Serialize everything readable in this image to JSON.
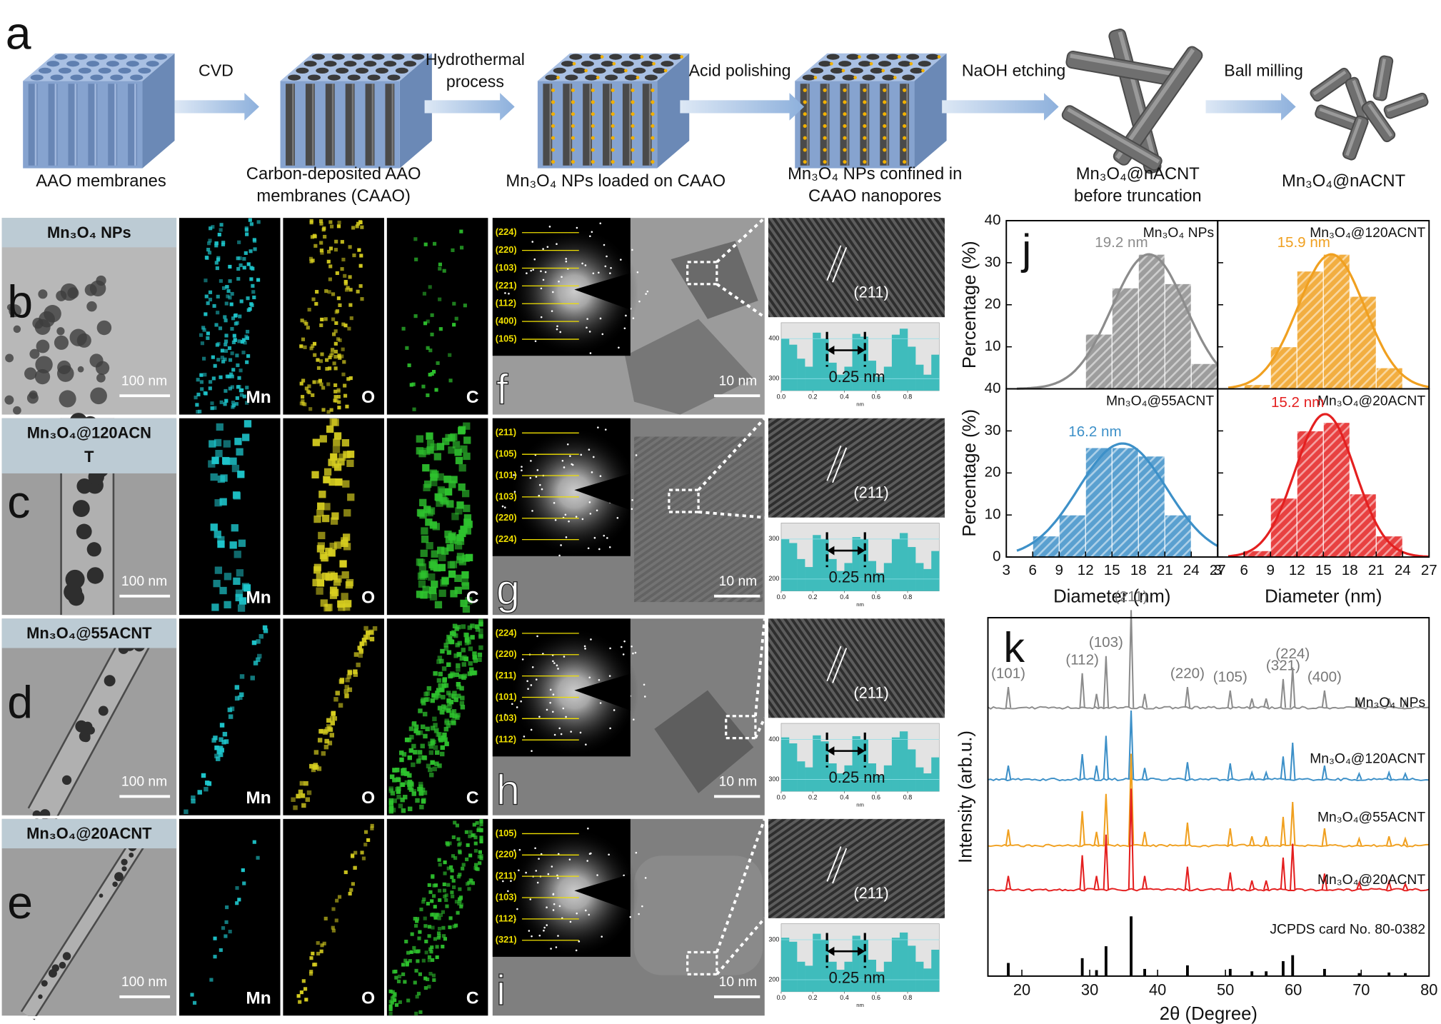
{
  "panel_a": {
    "letter": "a",
    "arrows": [
      [
        "CVD"
      ],
      [
        "Hydrothermal",
        "process"
      ],
      [
        "Acid polishing"
      ],
      [
        "NaOH etching"
      ],
      [
        "Ball milling"
      ]
    ],
    "steps": [
      [
        "AAO membranes"
      ],
      [
        "Carbon-deposited AAO",
        "membranes (CAAO)"
      ],
      [
        "Mn₃O₄ NPs loaded on CAAO"
      ],
      [
        "Mn₃O₄ NPs confined in",
        "CAAO nanopores"
      ],
      [
        "Mn₃O₄@nACNT",
        "before truncation"
      ],
      [
        "Mn₃O₄@nACNT"
      ]
    ]
  },
  "maps": [
    "Mn",
    "O",
    "C"
  ],
  "scale_bar": "100 nm",
  "hr_scale_bar": "10 nm",
  "plane": "(211)",
  "spacing": "0.25 nm",
  "profile_axis": {
    "xlim": [
      0,
      1
    ],
    "xticks": [
      {
        "value": 0,
        "label": "0.0"
      },
      0.2,
      0.4,
      0.6,
      0.8
    ],
    "xlabel": "nm"
  },
  "rows": [
    {
      "letter": "b",
      "title": [
        "Mn₃O₄ NPs"
      ],
      "hr_letter": "f",
      "saed": [
        "(224)",
        "(220)",
        "(103)",
        "(221)",
        "(112)",
        "(400)",
        "(105)"
      ],
      "profile": {
        "ylim": [
          270,
          440
        ],
        "yticks": [
          300,
          400
        ],
        "values": [
          400,
          385,
          350,
          330,
          415,
          400,
          340,
          310,
          330,
          412,
          405,
          345,
          305,
          330,
          410,
          425,
          380,
          335,
          310,
          360
        ]
      }
    },
    {
      "letter": "c",
      "title": [
        "Mn₃O₄@120ACN",
        "T"
      ],
      "hr_letter": "g",
      "saed": [
        "(211)",
        "(105)",
        "(101)",
        "(103)",
        "(220)",
        "(224)"
      ],
      "profile": {
        "ylim": [
          170,
          340
        ],
        "yticks": [
          200,
          300
        ],
        "values": [
          300,
          290,
          250,
          230,
          310,
          300,
          250,
          220,
          240,
          305,
          300,
          245,
          215,
          240,
          300,
          315,
          280,
          240,
          225,
          270
        ]
      }
    },
    {
      "letter": "d",
      "title": [
        "Mn₃O₄@55ACNT"
      ],
      "hr_letter": "h",
      "saed": [
        "(224)",
        "(220)",
        "(211)",
        "(101)",
        "(103)",
        "(112)"
      ],
      "profile": {
        "ylim": [
          270,
          440
        ],
        "yticks": [
          300,
          400
        ],
        "values": [
          405,
          390,
          345,
          330,
          410,
          395,
          340,
          315,
          335,
          408,
          400,
          340,
          310,
          335,
          405,
          420,
          375,
          330,
          315,
          355
        ]
      }
    },
    {
      "letter": "e",
      "title": [
        "Mn₃O₄@20ACNT"
      ],
      "hr_letter": "i",
      "saed": [
        "(105)",
        "(220)",
        "(211)",
        "(103)",
        "(112)",
        "(321)"
      ],
      "profile": {
        "ylim": [
          170,
          340
        ],
        "yticks": [
          200,
          300
        ],
        "values": [
          305,
          295,
          245,
          235,
          315,
          300,
          245,
          225,
          245,
          310,
          300,
          250,
          220,
          245,
          305,
          318,
          285,
          245,
          228,
          275
        ]
      }
    }
  ],
  "panel_j": {
    "letter": "j",
    "ylabel": "Percentage (%)",
    "xlabel": "Diameter (nm)",
    "xlim": [
      3,
      27
    ],
    "xticks": [
      3,
      6,
      9,
      12,
      15,
      18,
      21,
      24,
      27
    ],
    "ylim": [
      0,
      40
    ],
    "yticks": [
      0,
      10,
      20,
      30,
      40
    ],
    "charts": [
      {
        "name": "Mn₃O₄ NPs",
        "color": "#8c8c8c",
        "bins": [
          12,
          15,
          18,
          21,
          24,
          27
        ],
        "values": [
          13,
          24,
          32,
          25,
          6
        ],
        "fit": {
          "mean": 19.2,
          "sigma": 4.2,
          "peak": 32
        },
        "fit_label": "19.2 nm"
      },
      {
        "name": "Mn₃O₄@120ACNT",
        "color": "#f0a020",
        "bins": [
          6,
          9,
          12,
          15,
          18,
          21,
          24
        ],
        "values": [
          1,
          10,
          28,
          32,
          22,
          5
        ],
        "fit": {
          "mean": 15.9,
          "sigma": 3.8,
          "peak": 32
        },
        "fit_label": "15.9 nm"
      },
      {
        "name": "Mn₃O₄@55ACNT",
        "color": "#3d90c8",
        "bins": [
          6,
          9,
          12,
          15,
          18,
          21,
          24
        ],
        "values": [
          5,
          10,
          26,
          26,
          24,
          10
        ],
        "fit": {
          "mean": 16.2,
          "sigma": 5,
          "peak": 27
        },
        "fit_label": "16.2 nm"
      },
      {
        "name": "Mn₃O₄@20ACNT",
        "color": "#e42020",
        "bins": [
          6,
          9,
          12,
          15,
          18,
          21,
          24
        ],
        "values": [
          1.5,
          14,
          30,
          32,
          15,
          5
        ],
        "fit": {
          "mean": 15.2,
          "sigma": 3.4,
          "peak": 34
        },
        "fit_label": "15.2 nm"
      }
    ]
  },
  "panel_k": {
    "letter": "k",
    "ylabel": "Intensity (arb.u.)",
    "xlabel": "2θ (Degree)",
    "xlim": [
      15,
      80
    ],
    "xticks": [
      20,
      30,
      40,
      50,
      60,
      70,
      80
    ],
    "peaks": [
      18.0,
      28.9,
      31.0,
      32.4,
      36.1,
      38.1,
      44.4,
      50.7,
      53.9,
      56.0,
      58.5,
      59.9,
      64.6,
      69.7,
      74.1,
      76.5
    ],
    "peak_labels": [
      "(101)",
      "(112)",
      null,
      "(103)",
      "(211)",
      null,
      "(220)",
      "(105)",
      null,
      null,
      "(321)",
      "(224)",
      "(400)",
      null,
      null,
      null
    ],
    "series": [
      {
        "name": "Mn₃O₄ NPs",
        "color": "#8c8c8c",
        "values": [
          18,
          30,
          12,
          45,
          85,
          12,
          18,
          15,
          8,
          8,
          25,
          35,
          15,
          7,
          8,
          6
        ]
      },
      {
        "name": "Mn₃O₄@120ACNT",
        "color": "#3d90c8",
        "values": [
          12,
          22,
          12,
          38,
          60,
          10,
          15,
          14,
          6,
          6,
          20,
          32,
          12,
          5,
          6,
          5
        ]
      },
      {
        "name": "Mn₃O₄@55ACNT",
        "color": "#f0a020",
        "values": [
          14,
          30,
          12,
          45,
          80,
          12,
          20,
          15,
          8,
          8,
          25,
          38,
          15,
          6,
          8,
          6
        ]
      },
      {
        "name": "Mn₃O₄@20ACNT",
        "color": "#e42020",
        "values": [
          12,
          30,
          12,
          48,
          88,
          12,
          20,
          15,
          8,
          8,
          28,
          40,
          14,
          6,
          7,
          5
        ]
      },
      {
        "name": "JCPDS card No. 80-0382",
        "color": "#000000",
        "values": [
          22,
          30,
          10,
          50,
          100,
          12,
          18,
          12,
          8,
          8,
          25,
          35,
          12,
          5,
          6,
          5
        ]
      }
    ]
  }
}
